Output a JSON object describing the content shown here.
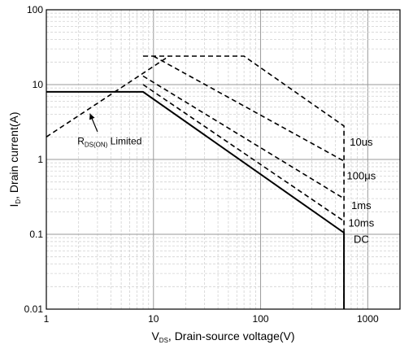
{
  "chart_data": {
    "type": "line",
    "x_scale": "log",
    "y_scale": "log",
    "xlim": [
      1,
      2000
    ],
    "ylim": [
      0.01,
      100
    ],
    "grid": true,
    "x_ticks": [
      {
        "value": 1,
        "label": "1"
      },
      {
        "value": 10,
        "label": "10"
      },
      {
        "value": 100,
        "label": "100"
      },
      {
        "value": 1000,
        "label": "1000"
      }
    ],
    "y_ticks": [
      {
        "value": 100,
        "label": "100"
      },
      {
        "value": 10,
        "label": "10"
      },
      {
        "value": 1,
        "label": "1"
      },
      {
        "value": 0.1,
        "label": "0.1"
      },
      {
        "value": 0.01,
        "label": "0.01"
      }
    ],
    "xlabel": {
      "main": "V",
      "sub": "DS",
      "rest": ", Drain-source voltage(V)"
    },
    "ylabel": {
      "main": "I",
      "sub": "D",
      "rest": ", Drain current(A)"
    },
    "series": [
      {
        "name": "10us",
        "style": "dashed",
        "points": [
          [
            8,
            24
          ],
          [
            70,
            24
          ],
          [
            600,
            2.8
          ],
          [
            600,
            0.01
          ]
        ]
      },
      {
        "name": "100μs",
        "style": "dashed",
        "points": [
          [
            10,
            24
          ],
          [
            600,
            0.95
          ]
        ]
      },
      {
        "name": "1ms",
        "style": "dashed",
        "points": [
          [
            8,
            13
          ],
          [
            600,
            0.3
          ]
        ]
      },
      {
        "name": "10ms",
        "style": "dashed",
        "points": [
          [
            8,
            10
          ],
          [
            600,
            0.15
          ]
        ]
      },
      {
        "name": "DC",
        "style": "solid",
        "points": [
          [
            1,
            8
          ],
          [
            8,
            8
          ],
          [
            600,
            0.105
          ],
          [
            600,
            0.01
          ]
        ]
      },
      {
        "name": "RDS(ON) Limited",
        "style": "dashed",
        "points": [
          [
            1,
            2
          ],
          [
            14,
            24
          ]
        ]
      }
    ],
    "curve_labels": [
      {
        "series": "10us",
        "text": "10us",
        "at": [
          870,
          1.7
        ]
      },
      {
        "series": "100μs",
        "text": "100μs",
        "at": [
          870,
          0.6
        ]
      },
      {
        "series": "1ms",
        "text": "1ms",
        "at": [
          870,
          0.24
        ]
      },
      {
        "series": "10ms",
        "text": "10ms",
        "at": [
          870,
          0.14
        ]
      },
      {
        "series": "DC",
        "text": "DC",
        "at": [
          870,
          0.085
        ]
      }
    ],
    "annotation": {
      "label_main": "R",
      "label_sub": "DS(ON)",
      "label_rest": " Limited",
      "text_at": [
        1.95,
        1.75
      ],
      "arrow_from": [
        3.0,
        2.35
      ],
      "arrow_to": [
        2.55,
        4.1
      ]
    }
  }
}
